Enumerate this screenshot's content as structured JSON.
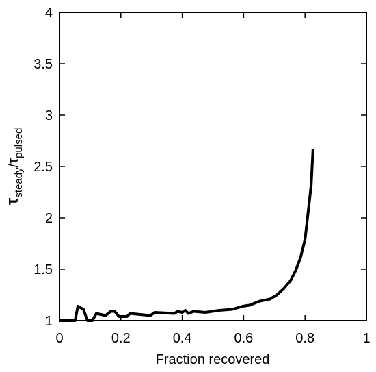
{
  "chart_data": {
    "type": "line",
    "xlabel": "Fraction recovered",
    "ylabel": [
      "τ",
      "steady",
      "/τ",
      "pulsed"
    ],
    "x": [
      0,
      0.051,
      0.06,
      0.078,
      0.091,
      0.107,
      0.12,
      0.15,
      0.167,
      0.18,
      0.194,
      0.22,
      0.23,
      0.296,
      0.31,
      0.374,
      0.385,
      0.4,
      0.41,
      0.42,
      0.437,
      0.475,
      0.52,
      0.563,
      0.597,
      0.619,
      0.653,
      0.686,
      0.708,
      0.73,
      0.753,
      0.77,
      0.786,
      0.8,
      0.81,
      0.82,
      0.826
    ],
    "series": [
      {
        "color": "#000000",
        "values": [
          1,
          1,
          1.14,
          1.11,
          1.0,
          1.0,
          1.07,
          1.05,
          1.09,
          1.09,
          1.04,
          1.04,
          1.07,
          1.05,
          1.08,
          1.07,
          1.09,
          1.08,
          1.1,
          1.07,
          1.09,
          1.08,
          1.1,
          1.11,
          1.14,
          1.15,
          1.19,
          1.21,
          1.25,
          1.31,
          1.39,
          1.49,
          1.62,
          1.79,
          2.05,
          2.32,
          2.67
        ]
      }
    ],
    "xlim": [
      0,
      1
    ],
    "xticks": [
      0,
      0.2,
      0.4,
      0.6,
      0.8,
      1
    ],
    "ylim": [
      1,
      4
    ],
    "yticks": [
      1,
      1.5,
      2,
      2.5,
      3,
      3.5,
      4
    ]
  }
}
